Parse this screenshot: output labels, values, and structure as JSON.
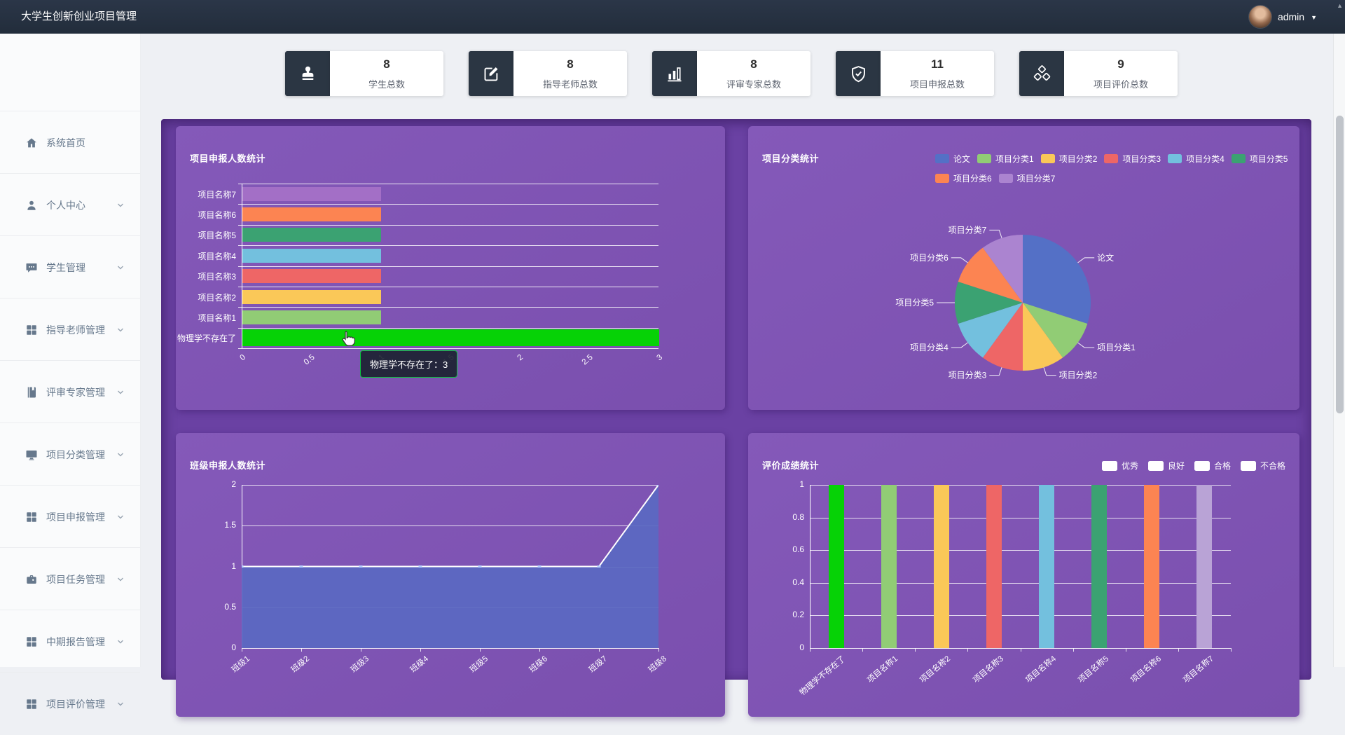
{
  "navbar": {
    "title": "大学生创新创业项目管理",
    "username": "admin"
  },
  "scrollbar": {
    "up_arrow": "▲"
  },
  "sidebar": {
    "items": [
      {
        "key": "home",
        "label": "系统首页",
        "icon": "home-icon",
        "expandable": false
      },
      {
        "key": "profile",
        "label": "个人中心",
        "icon": "user-icon",
        "expandable": true
      },
      {
        "key": "students",
        "label": "学生管理",
        "icon": "chat-icon",
        "expandable": true
      },
      {
        "key": "advisors",
        "label": "指导老师管理",
        "icon": "grid-icon",
        "expandable": true
      },
      {
        "key": "experts",
        "label": "评审专家管理",
        "icon": "book-icon",
        "expandable": true
      },
      {
        "key": "project-categories",
        "label": "项目分类管理",
        "icon": "desktop-icon",
        "expandable": true
      },
      {
        "key": "project-declare",
        "label": "项目申报管理",
        "icon": "grid-icon",
        "expandable": true
      },
      {
        "key": "project-tasks",
        "label": "项目任务管理",
        "icon": "briefcase-icon",
        "expandable": true
      },
      {
        "key": "midterm-reports",
        "label": "中期报告管理",
        "icon": "grid-icon",
        "expandable": true
      },
      {
        "key": "project-evaluation",
        "label": "项目评价管理",
        "icon": "grid-icon",
        "expandable": true,
        "partially_visible": true
      }
    ]
  },
  "stats": {
    "cards": [
      {
        "key": "students",
        "icon": "stamp-icon",
        "value": "8",
        "label": "学生总数"
      },
      {
        "key": "advisors",
        "icon": "edit-icon",
        "value": "8",
        "label": "指导老师总数"
      },
      {
        "key": "experts",
        "icon": "chart-icon",
        "value": "8",
        "label": "评审专家总数"
      },
      {
        "key": "declarations",
        "icon": "shield-check-icon",
        "value": "11",
        "label": "项目申报总数"
      },
      {
        "key": "evaluations",
        "icon": "cubes-icon",
        "value": "9",
        "label": "项目评价总数"
      }
    ]
  },
  "tooltip": {
    "text": "物理学不存在了：3",
    "border_color": "#0ac33c"
  },
  "chart_data": [
    {
      "id": "project_declare_bar",
      "type": "bar",
      "orientation": "horizontal",
      "title": "项目申报人数统计",
      "categories_top_to_bottom": [
        "项目名称7",
        "项目名称6",
        "项目名称5",
        "项目名称4",
        "项目名称3",
        "项目名称2",
        "项目名称1",
        "物理学不存在了"
      ],
      "values": [
        1,
        1,
        1,
        1,
        1,
        1,
        1,
        3
      ],
      "colors": [
        "#a36fc6",
        "#fc8452",
        "#3ba272",
        "#73c0de",
        "#ee6666",
        "#fac858",
        "#91cc75",
        "#06d206"
      ],
      "highlighted_category": "物理学不存在了",
      "xticks": [
        "0",
        "0.5",
        "1",
        "1.5",
        "2",
        "2.5",
        "3"
      ],
      "xlim": [
        0,
        3
      ],
      "grid": true
    },
    {
      "id": "project_category_pie",
      "type": "pie",
      "title": "项目分类统计",
      "labels": [
        "论文",
        "项目分类1",
        "项目分类2",
        "项目分类3",
        "项目分类4",
        "项目分类5",
        "项目分类6",
        "项目分类7"
      ],
      "values": [
        3,
        1,
        1,
        1,
        1,
        1,
        1,
        1
      ],
      "colors": [
        "#5470c6",
        "#91cc75",
        "#fac858",
        "#ee6666",
        "#73c0de",
        "#3ba272",
        "#fc8452",
        "#ab84d0"
      ],
      "legend_rows": [
        [
          "论文",
          "项目分类1",
          "项目分类2",
          "项目分类3",
          "项目分类4",
          "项目分类5"
        ],
        [
          "项目分类6",
          "项目分类7"
        ]
      ],
      "legend_position": "top-right"
    },
    {
      "id": "class_declare_area",
      "type": "area",
      "title": "班级申报人数统计",
      "categories": [
        "班级1",
        "班级2",
        "班级3",
        "班级4",
        "班级5",
        "班级6",
        "班级7",
        "班级8"
      ],
      "values": [
        1,
        1,
        1,
        1,
        1,
        1,
        1,
        2
      ],
      "yticks": [
        "0",
        "0.5",
        "1",
        "1.5",
        "2"
      ],
      "ylim": [
        0,
        2
      ],
      "line_color": "#ffffff",
      "fill_color": "#5a68c2",
      "grid": true
    },
    {
      "id": "evaluation_score_bar",
      "type": "bar",
      "orientation": "vertical",
      "title": "评价成绩统计",
      "legend": [
        "优秀",
        "良好",
        "合格",
        "不合格"
      ],
      "legend_swatch_color": "#ffffff",
      "categories": [
        "物理学不存在了",
        "项目名称1",
        "项目名称2",
        "项目名称3",
        "项目名称4",
        "项目名称5",
        "项目名称6",
        "项目名称7"
      ],
      "values": [
        1,
        1,
        1,
        1,
        1,
        1,
        1,
        1
      ],
      "colors": [
        "#06d206",
        "#91cc75",
        "#fac858",
        "#ee6666",
        "#73c0de",
        "#3ba272",
        "#fc8452",
        "#b9a3d6"
      ],
      "yticks": [
        "0",
        "0.2",
        "0.4",
        "0.6",
        "0.8",
        "1"
      ],
      "ylim": [
        0,
        1
      ],
      "grid": true
    }
  ]
}
